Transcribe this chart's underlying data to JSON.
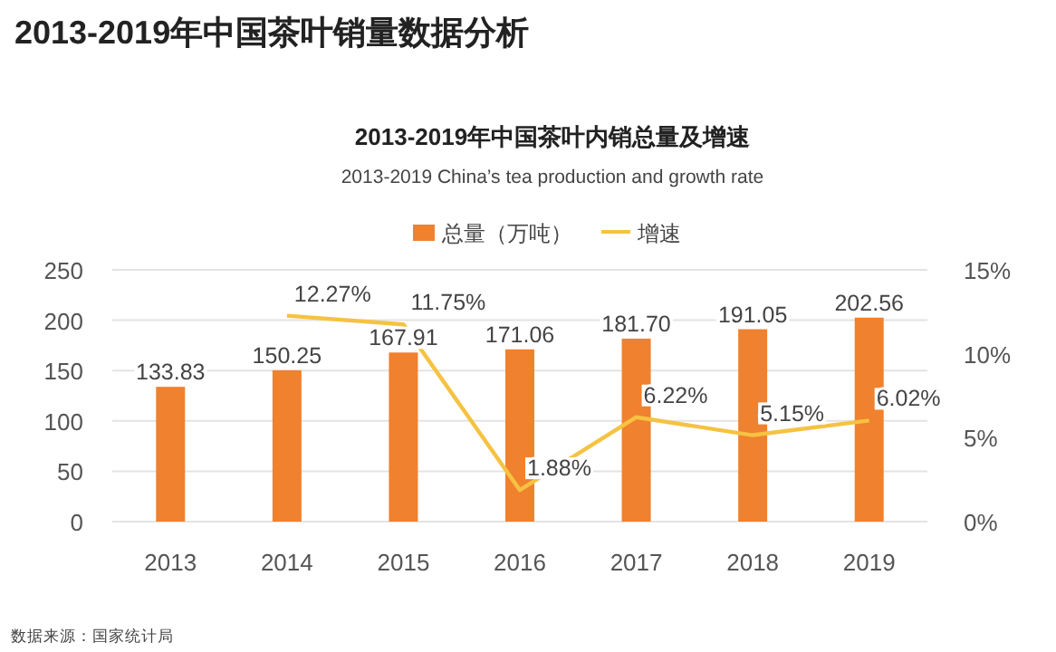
{
  "chart_data": {
    "type": "bar",
    "title": "2013-2019年中国茶叶销量数据分析",
    "subtitle": "2013-2019年中国茶叶内销总量及增速",
    "annotations": [
      "2013-2019 China’s tea production and growth rate",
      "数据来源：国家统计局"
    ],
    "categories": [
      "2013",
      "2014",
      "2015",
      "2016",
      "2017",
      "2018",
      "2019"
    ],
    "series": [
      {
        "name": "总量（万吨）",
        "color": "#f0812e",
        "values": [
          133.83,
          150.25,
          167.91,
          171.06,
          181.7,
          191.05,
          202.56
        ],
        "value_labels": [
          "133.83",
          "150.25",
          "167.91",
          "171.06",
          "181.70",
          "191.05",
          "202.56"
        ]
      },
      {
        "name": "增速",
        "type": "line",
        "axis": "y2",
        "color": "#f5c242",
        "values": [
          null,
          12.27,
          11.75,
          1.88,
          6.22,
          5.15,
          6.02
        ],
        "value_labels": [
          null,
          "12.27%",
          "11.75%",
          "1.88%",
          "6.22%",
          "5.15%",
          "6.02%"
        ]
      }
    ],
    "ylim": [
      0,
      250
    ],
    "yticks": [
      0,
      50,
      100,
      150,
      200,
      250
    ],
    "y2lim": [
      0,
      15
    ],
    "y2ticks": [
      {
        "value": 0,
        "label": "0%"
      },
      {
        "value": 5,
        "label": "5%"
      },
      {
        "value": 10,
        "label": "10%"
      },
      {
        "value": 15,
        "label": "15%"
      }
    ],
    "grid": "y",
    "legend": "top",
    "marker": "none",
    "line_style": "solid"
  }
}
